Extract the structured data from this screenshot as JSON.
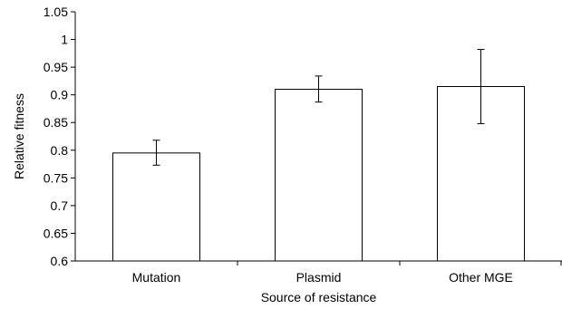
{
  "chart_data": {
    "type": "bar",
    "categories": [
      "Mutation",
      "Plasmid",
      "Other MGE"
    ],
    "values": [
      0.795,
      0.91,
      0.915
    ],
    "error_high": [
      0.818,
      0.934,
      0.982
    ],
    "error_low": [
      0.773,
      0.887,
      0.848
    ],
    "title": "",
    "xlabel": "Source of resistance",
    "ylabel": "Relative fitness",
    "ylim": [
      0.6,
      1.05
    ],
    "yticks": [
      0.6,
      0.65,
      0.7,
      0.75,
      0.8,
      0.85,
      0.9,
      0.95,
      1,
      1.05
    ],
    "ytick_labels": [
      "0.6",
      "0.65",
      "0.7",
      "0.75",
      "0.8",
      "0.85",
      "0.9",
      "0.95",
      "1",
      "1.05"
    ],
    "grid": false,
    "legend": "none",
    "bar_fill": "#ffffff",
    "bar_stroke": "#000000"
  }
}
